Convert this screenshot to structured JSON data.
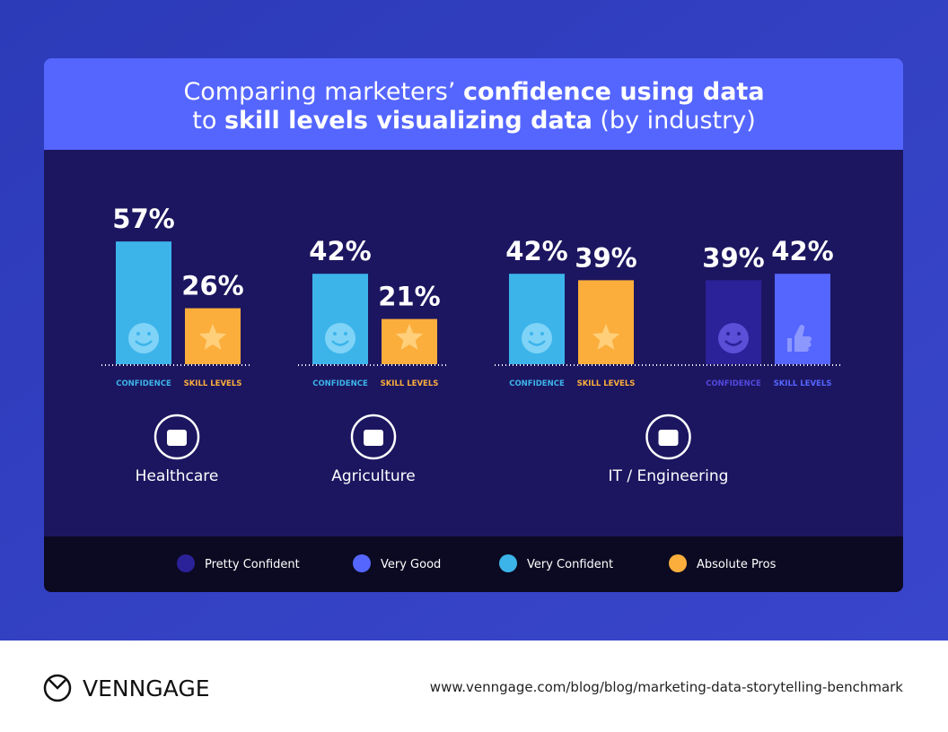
{
  "chart_data": {
    "type": "bar",
    "title_lines": [
      [
        {
          "text": "Comparing marketers’ ",
          "bold": false
        },
        {
          "text": "confidence using data",
          "bold": true
        }
      ],
      [
        {
          "text": "to ",
          "bold": false
        },
        {
          "text": "skill levels visualizing data",
          "bold": true
        },
        {
          "text": " (by industry)",
          "bold": false
        }
      ]
    ],
    "series": [
      {
        "name": "Pretty Confident",
        "color": "#2b2199"
      },
      {
        "name": "Very Good",
        "color": "#5566ff"
      },
      {
        "name": "Very Confident",
        "color": "#3cb4ea"
      },
      {
        "name": "Absolute Pros",
        "color": "#fbae3c"
      }
    ],
    "groups": [
      {
        "name": "Healthcare",
        "bars": [
          {
            "label": "CONFIDENCE",
            "series": 2,
            "value": 57,
            "value_label": "57%"
          },
          {
            "label": "SKILL LEVELS",
            "series": 3,
            "value": 26,
            "value_label": "26%"
          }
        ]
      },
      {
        "name": "Agriculture",
        "bars": [
          {
            "label": "CONFIDENCE",
            "series": 2,
            "value": 42,
            "value_label": "42%"
          },
          {
            "label": "SKILL LEVELS",
            "series": 3,
            "value": 21,
            "value_label": "21%"
          }
        ]
      },
      {
        "name": "IT / Engineering",
        "bars": [
          {
            "label": "CONFIDENCE",
            "series": 2,
            "value": 42,
            "value_label": "42%"
          },
          {
            "label": "SKILL LEVELS",
            "series": 3,
            "value": 39,
            "value_label": "39%"
          },
          {
            "label": "CONFIDENCE",
            "series": 0,
            "value": 39,
            "value_label": "39%"
          },
          {
            "label": "SKILL LEVELS",
            "series": 1,
            "value": 42,
            "value_label": "42%"
          }
        ]
      }
    ]
  },
  "footer": {
    "brand": "VENNGAGE",
    "url": "www.venngage.com/blog/blog/marketing-data-storytelling-benchmark"
  }
}
